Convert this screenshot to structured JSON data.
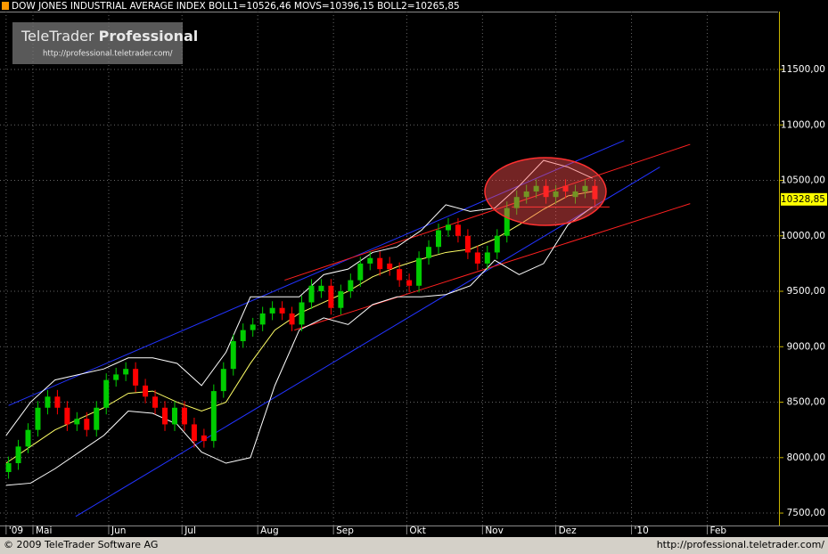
{
  "chart_data": {
    "type": "candlestick",
    "title": "DOW JONES INDUSTRIAL AVERAGE INDEX BOLL1=10526,46 MOVS=10396,15 BOLL2=10265,85",
    "logo": {
      "brand": "TeleTrader",
      "product": "Professional",
      "url": "http://professional.teletrader.com/"
    },
    "footer": {
      "copyright": "© 2009 TeleTrader Software AG",
      "url": "http://professional.teletrader.com/"
    },
    "last": {
      "value": 10328.85,
      "label": "10328,85"
    },
    "xlim": [
      107.5,
      426
    ],
    "ylim": [
      7388,
      12022
    ],
    "xticks": [
      {
        "value": 110,
        "label": "'09"
      },
      {
        "value": 121,
        "label": "Mai"
      },
      {
        "value": 152,
        "label": "Jun"
      },
      {
        "value": 182,
        "label": "Jul"
      },
      {
        "value": 213,
        "label": "Aug"
      },
      {
        "value": 244,
        "label": "Sep"
      },
      {
        "value": 274,
        "label": "Okt"
      },
      {
        "value": 305,
        "label": "Nov"
      },
      {
        "value": 335,
        "label": "Dez"
      },
      {
        "value": 366,
        "label": "'10"
      },
      {
        "value": 397,
        "label": "Feb"
      }
    ],
    "yticks": [
      {
        "value": 7500,
        "label": "7500,00"
      },
      {
        "value": 8000,
        "label": "8000,00"
      },
      {
        "value": 8500,
        "label": "8500,00"
      },
      {
        "value": 9000,
        "label": "9000,00"
      },
      {
        "value": 9500,
        "label": "9500,00"
      },
      {
        "value": 10000,
        "label": "10000,00"
      },
      {
        "value": 10500,
        "label": "10500,00"
      },
      {
        "value": 11000,
        "label": "11000,00"
      },
      {
        "value": 11500,
        "label": "11500,00"
      }
    ],
    "grid": true,
    "up_color": "#00cc00",
    "down_color": "#ff0000",
    "x": [
      111,
      115,
      119,
      123,
      127,
      131,
      135,
      139,
      143,
      147,
      151,
      155,
      159,
      163,
      167,
      171,
      175,
      179,
      183,
      187,
      191,
      195,
      199,
      203,
      207,
      211,
      215,
      219,
      223,
      227,
      231,
      235,
      239,
      243,
      247,
      251,
      255,
      259,
      263,
      267,
      271,
      275,
      279,
      283,
      287,
      291,
      295,
      299,
      303,
      307,
      311,
      315,
      319,
      323,
      327,
      331,
      335,
      339,
      343,
      347,
      351
    ],
    "open": [
      7870,
      7950,
      8100,
      8250,
      8450,
      8550,
      8450,
      8300,
      8350,
      8250,
      8450,
      8700,
      8750,
      8800,
      8650,
      8550,
      8450,
      8300,
      8450,
      8300,
      8200,
      8150,
      8600,
      8800,
      9050,
      9150,
      9200,
      9300,
      9350,
      9300,
      9200,
      9400,
      9500,
      9550,
      9350,
      9500,
      9600,
      9750,
      9800,
      9750,
      9700,
      9600,
      9550,
      9800,
      9900,
      10050,
      10100,
      10000,
      9850,
      9750,
      9850,
      10000,
      10250,
      10350,
      10400,
      10450,
      10350,
      10450,
      10350,
      10400,
      10450
    ],
    "high": [
      8010,
      8160,
      8310,
      8510,
      8610,
      8610,
      8510,
      8410,
      8410,
      8510,
      8760,
      8810,
      8860,
      8860,
      8710,
      8610,
      8510,
      8510,
      8510,
      8360,
      8260,
      8660,
      8860,
      9110,
      9210,
      9260,
      9360,
      9410,
      9410,
      9360,
      9460,
      9610,
      9610,
      9610,
      9560,
      9660,
      9810,
      9860,
      9860,
      9810,
      9760,
      9660,
      9860,
      9960,
      10110,
      10160,
      10160,
      10060,
      9910,
      9910,
      10060,
      10310,
      10410,
      10460,
      10510,
      10510,
      10460,
      10510,
      10460,
      10510,
      10510
    ],
    "low": [
      7810,
      7890,
      8040,
      8190,
      8390,
      8390,
      8240,
      8240,
      8190,
      8190,
      8390,
      8640,
      8690,
      8590,
      8490,
      8390,
      8240,
      8240,
      8240,
      8090,
      8090,
      8090,
      8540,
      8740,
      8990,
      9090,
      9140,
      9240,
      9240,
      9140,
      9140,
      9340,
      9440,
      9290,
      9290,
      9440,
      9540,
      9690,
      9640,
      9640,
      9540,
      9490,
      9490,
      9740,
      9840,
      9990,
      9940,
      9790,
      9690,
      9690,
      9790,
      9940,
      10190,
      10290,
      10340,
      10290,
      10290,
      10340,
      10290,
      10340,
      10270
    ],
    "close": [
      7950,
      8100,
      8250,
      8450,
      8550,
      8450,
      8300,
      8350,
      8250,
      8450,
      8700,
      8750,
      8800,
      8650,
      8550,
      8450,
      8300,
      8450,
      8300,
      8150,
      8150,
      8600,
      8800,
      9050,
      9150,
      9200,
      9300,
      9350,
      9300,
      9200,
      9400,
      9550,
      9550,
      9350,
      9500,
      9600,
      9750,
      9800,
      9700,
      9700,
      9600,
      9550,
      9800,
      9900,
      10050,
      10100,
      10000,
      9850,
      9750,
      9850,
      10000,
      10250,
      10350,
      10400,
      10450,
      10350,
      10400,
      10400,
      10400,
      10450,
      10330
    ],
    "bands": {
      "x": [
        110,
        120,
        130,
        140,
        150,
        160,
        170,
        180,
        190,
        200,
        210,
        220,
        230,
        240,
        250,
        260,
        270,
        280,
        290,
        300,
        310,
        320,
        330,
        340,
        350
      ],
      "series": [
        {
          "name": "BOLL1",
          "color": "#ffffff",
          "values": [
            8200,
            8500,
            8700,
            8750,
            8800,
            8900,
            8900,
            8850,
            8650,
            8950,
            9450,
            9450,
            9450,
            9650,
            9700,
            9850,
            9900,
            10050,
            10280,
            10220,
            10250,
            10450,
            10680,
            10620,
            10520
          ]
        },
        {
          "name": "MOVS",
          "color": "#ffff66",
          "values": [
            7950,
            8100,
            8250,
            8350,
            8450,
            8580,
            8600,
            8500,
            8420,
            8500,
            8850,
            9150,
            9300,
            9400,
            9500,
            9630,
            9720,
            9790,
            9850,
            9880,
            9970,
            10100,
            10240,
            10360,
            10400
          ]
        },
        {
          "name": "BOLL2",
          "color": "#ffffff",
          "values": [
            7750,
            7770,
            7900,
            8050,
            8200,
            8420,
            8400,
            8300,
            8050,
            7950,
            8000,
            8650,
            9150,
            9260,
            9200,
            9380,
            9450,
            9450,
            9470,
            9550,
            9780,
            9650,
            9750,
            10100,
            10260
          ]
        }
      ]
    },
    "trendlines": [
      {
        "color": "#2233ff",
        "x": [
          111,
          363
        ],
        "y": [
          8470,
          10860
        ]
      },
      {
        "color": "#2233ff",
        "x": [
          138.5,
          377.6
        ],
        "y": [
          7470,
          10620
        ]
      },
      {
        "color": "#ff2020",
        "x": [
          224,
          390
        ],
        "y": [
          9600,
          10825
        ]
      },
      {
        "color": "#ff2020",
        "x": [
          228,
          390
        ],
        "y": [
          9150,
          10290
        ]
      },
      {
        "color": "#ff2020",
        "x": [
          317,
          357
        ],
        "y": [
          10260,
          10260
        ]
      }
    ]
  }
}
